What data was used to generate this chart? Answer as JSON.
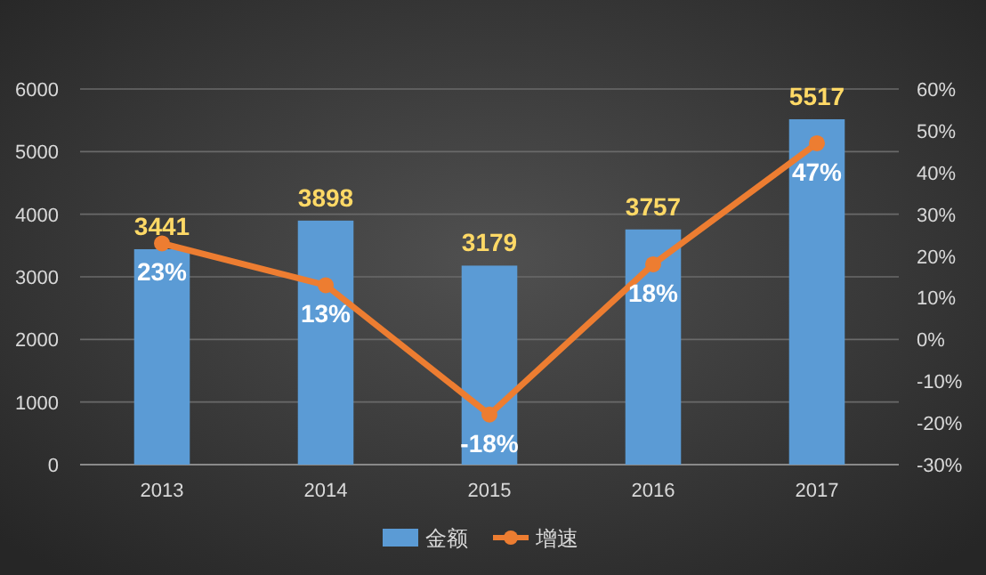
{
  "chart_data": {
    "type": "bar",
    "categories": [
      "2013",
      "2014",
      "2015",
      "2016",
      "2017"
    ],
    "series": [
      {
        "name": "金额",
        "color": "#5b9bd5",
        "values": [
          3441,
          3898,
          3179,
          3757,
          5517
        ]
      },
      {
        "name": "增速",
        "type": "line",
        "axis": "y2",
        "color": "#ed7d31",
        "values": [
          23,
          13,
          -18,
          18,
          47
        ],
        "value_labels": [
          "23%",
          "13%",
          "-18%",
          "18%",
          "47%"
        ]
      }
    ],
    "ylim": [
      0,
      6000
    ],
    "yticks": [
      0,
      1000,
      2000,
      3000,
      4000,
      5000,
      6000
    ],
    "y2lim": [
      -30,
      60
    ],
    "y2ticks": [
      {
        "value": -30,
        "label": "-30%"
      },
      {
        "value": -20,
        "label": "-20%"
      },
      {
        "value": -10,
        "label": "-10%"
      },
      {
        "value": 0,
        "label": "0%"
      },
      {
        "value": 10,
        "label": "10%"
      },
      {
        "value": 20,
        "label": "20%"
      },
      {
        "value": 30,
        "label": "30%"
      },
      {
        "value": 40,
        "label": "40%"
      },
      {
        "value": 50,
        "label": "50%"
      },
      {
        "value": 60,
        "label": "60%"
      }
    ],
    "grid": "y",
    "legend": "bottom",
    "marker": "circle",
    "line_style": "solid",
    "data_labels": true
  }
}
